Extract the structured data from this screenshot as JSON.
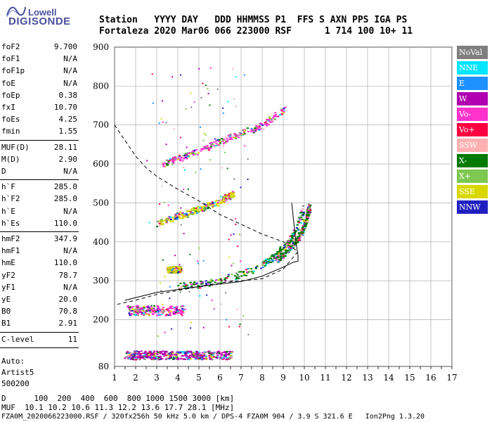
{
  "logo": {
    "line1": "Lowell",
    "line2": "DIGISONDE"
  },
  "header": {
    "line1": "Station   YYYY DAY   DDD HHMMSS P1  FFS S AXN PPS IGA PS",
    "line2": "Fortaleza 2020 Mar06 066 223000 RSF      1 714 100 10+ 11"
  },
  "params": {
    "group1": [
      {
        "name": "foF2",
        "value": "9.700"
      },
      {
        "name": "foF1",
        "value": "N/A"
      },
      {
        "name": "foF1p",
        "value": "N/A"
      },
      {
        "name": "foE",
        "value": "N/A"
      },
      {
        "name": "foEp",
        "value": "0.38"
      },
      {
        "name": "fxI",
        "value": "10.70"
      },
      {
        "name": "foEs",
        "value": "4.25"
      },
      {
        "name": "fmin",
        "value": "1.55"
      }
    ],
    "group2": [
      {
        "name": "MUF(D)",
        "value": "28.11"
      },
      {
        "name": "M(D)",
        "value": "2.90"
      },
      {
        "name": "D",
        "value": "N/A"
      }
    ],
    "group3": [
      {
        "name": "h`F",
        "value": "285.0"
      },
      {
        "name": "h`F2",
        "value": "285.0"
      },
      {
        "name": "h`E",
        "value": "N/A"
      },
      {
        "name": "h`Es",
        "value": "110.0"
      }
    ],
    "group4": [
      {
        "name": "hmF2",
        "value": "347.9"
      },
      {
        "name": "hmF1",
        "value": "N/A"
      },
      {
        "name": "hmE",
        "value": "110.0"
      },
      {
        "name": "yF2",
        "value": "78.7"
      },
      {
        "name": "yF1",
        "value": "N/A"
      },
      {
        "name": "yE",
        "value": "20.0"
      },
      {
        "name": "B0",
        "value": "70.8"
      },
      {
        "name": "B1",
        "value": "2.91"
      }
    ],
    "group5": [
      {
        "name": "C-level",
        "value": "11"
      }
    ],
    "auto": [
      "Auto:",
      "Artist5",
      "500200"
    ]
  },
  "legend": [
    {
      "label": "NoVal",
      "color": "#7f7f7f"
    },
    {
      "label": "NNE",
      "color": "#00e5ff"
    },
    {
      "label": "E",
      "color": "#1e90ff"
    },
    {
      "label": "W",
      "color": "#b000b0"
    },
    {
      "label": "Vo-",
      "color": "#ff33cc"
    },
    {
      "label": "Vo+",
      "color": "#ff0040"
    },
    {
      "label": "SSW",
      "color": "#ffb0b0"
    },
    {
      "label": "X-",
      "color": "#007a00"
    },
    {
      "label": "X+",
      "color": "#7ec850"
    },
    {
      "label": "SSE",
      "color": "#d8d800"
    },
    {
      "label": "NNW",
      "color": "#2020c0"
    }
  ],
  "footer": {
    "line1": "D      100  200  400  600  800 1000 1500 3000 [km]",
    "line2": "MUF  10.1 10.2 10.6 11.3 12.2 13.6 17.7 28.1 [MHz]",
    "line3": "FZA0M_2020066223000.RSF / 320fx256h 50 kHz 5.0 km / DPS-4 FZA0M 904 / 3.9 S 321.6 E   Ion2Png 1.3.20"
  },
  "chart_data": {
    "type": "scatter",
    "title": "",
    "xlabel": "",
    "ylabel": "",
    "xlim": [
      1,
      17
    ],
    "ylim": [
      80,
      900
    ],
    "x_ticks": [
      1,
      2,
      3,
      4,
      5,
      6,
      7,
      8,
      9,
      10,
      11,
      12,
      13,
      14,
      15,
      16,
      17
    ],
    "y_ticks": [
      80,
      200,
      300,
      400,
      500,
      600,
      700,
      800,
      900
    ],
    "grid": true,
    "traces": [
      {
        "name": "F2 O-trace",
        "points": [
          [
            4.0,
            286
          ],
          [
            5.0,
            292
          ],
          [
            6.0,
            302
          ],
          [
            7.0,
            318
          ],
          [
            8.0,
            343
          ],
          [
            8.5,
            362
          ],
          [
            9.0,
            385
          ],
          [
            9.4,
            415
          ],
          [
            9.7,
            450
          ],
          [
            9.9,
            488
          ]
        ]
      },
      {
        "name": "F2 X-trace",
        "points": [
          [
            8.6,
            352
          ],
          [
            9.3,
            385
          ],
          [
            9.8,
            420
          ],
          [
            10.1,
            465
          ],
          [
            10.2,
            492
          ]
        ]
      },
      {
        "name": "F 2-hop",
        "points": [
          [
            3.0,
            448
          ],
          [
            4.0,
            468
          ],
          [
            5.0,
            486
          ],
          [
            6.0,
            505
          ],
          [
            6.6,
            525
          ]
        ]
      },
      {
        "name": "F 3-hop",
        "points": [
          [
            3.2,
            600
          ],
          [
            4.0,
            615
          ],
          [
            5.0,
            635
          ],
          [
            6.0,
            660
          ],
          [
            7.0,
            680
          ],
          [
            8.0,
            700
          ],
          [
            9.0,
            742
          ]
        ]
      },
      {
        "name": "Es",
        "points": [
          [
            1.6,
            225
          ],
          [
            4.25,
            225
          ]
        ]
      },
      {
        "name": "Es 2-hop",
        "points": [
          [
            3.5,
            330
          ],
          [
            4.1,
            330
          ]
        ]
      },
      {
        "name": "low-height echoes",
        "points": [
          [
            1.5,
            110
          ],
          [
            6.5,
            110
          ]
        ]
      }
    ],
    "profile_solid": [
      [
        1.5,
        250
      ],
      [
        3,
        270
      ],
      [
        5,
        285
      ],
      [
        7,
        298
      ],
      [
        8,
        312
      ],
      [
        9,
        335
      ],
      [
        9.5,
        348
      ],
      [
        9.7,
        350
      ],
      [
        9.7,
        365
      ],
      [
        9.6,
        400
      ],
      [
        9.5,
        450
      ],
      [
        9.4,
        500
      ]
    ],
    "profile_dashed": [
      [
        1.0,
        700
      ],
      [
        1.5,
        660
      ],
      [
        2.0,
        620
      ],
      [
        2.5,
        590
      ],
      [
        3,
        568
      ],
      [
        4,
        535
      ],
      [
        5,
        505
      ],
      [
        6,
        470
      ],
      [
        7,
        445
      ],
      [
        8,
        420
      ],
      [
        9,
        400
      ],
      [
        9.7,
        375
      ],
      [
        9.0,
        330
      ],
      [
        8,
        305
      ],
      [
        6,
        295
      ],
      [
        4,
        275
      ],
      [
        3,
        265
      ],
      [
        2,
        250
      ],
      [
        1.0,
        238
      ]
    ]
  }
}
